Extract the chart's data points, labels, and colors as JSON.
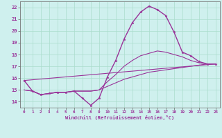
{
  "xlabel": "Windchill (Refroidissement éolien,°C)",
  "background_color": "#cff0ee",
  "line_color": "#993399",
  "grid_color": "#aaddcc",
  "xlim": [
    -0.5,
    23.5
  ],
  "ylim": [
    13.5,
    22.5
  ],
  "xticks": [
    0,
    1,
    2,
    3,
    4,
    5,
    6,
    7,
    8,
    9,
    10,
    11,
    12,
    13,
    14,
    15,
    16,
    17,
    18,
    19,
    20,
    21,
    22,
    23
  ],
  "yticks": [
    14,
    15,
    16,
    17,
    18,
    19,
    20,
    21,
    22
  ],
  "series": [
    {
      "x": [
        0,
        1,
        2,
        3,
        4,
        5,
        6,
        7,
        8,
        9,
        10,
        11,
        12,
        13,
        14,
        15,
        16,
        17,
        18,
        19,
        20,
        21,
        22,
        23
      ],
      "y": [
        15.8,
        14.9,
        14.6,
        14.7,
        14.8,
        14.8,
        14.9,
        14.3,
        13.7,
        14.3,
        16.1,
        17.5,
        19.3,
        20.7,
        21.6,
        22.1,
        21.8,
        21.3,
        19.9,
        18.2,
        17.9,
        17.4,
        17.2,
        17.2
      ],
      "markers": true,
      "linewidth": 1.0
    },
    {
      "x": [
        0,
        1,
        2,
        3,
        4,
        5,
        6,
        7,
        8,
        9,
        10,
        11,
        12,
        13,
        14,
        15,
        16,
        17,
        18,
        19,
        20,
        21,
        22,
        23
      ],
      "y": [
        15.0,
        14.9,
        14.6,
        14.7,
        14.8,
        14.8,
        14.9,
        14.9,
        14.9,
        15.0,
        15.7,
        16.3,
        17.0,
        17.5,
        17.9,
        18.1,
        18.3,
        18.2,
        18.0,
        17.8,
        17.5,
        17.3,
        17.2,
        17.2
      ],
      "markers": false,
      "linewidth": 0.8
    },
    {
      "x": [
        0,
        1,
        2,
        3,
        4,
        5,
        6,
        7,
        8,
        9,
        10,
        11,
        12,
        13,
        14,
        15,
        16,
        17,
        18,
        19,
        20,
        21,
        22,
        23
      ],
      "y": [
        15.0,
        14.9,
        14.6,
        14.7,
        14.8,
        14.8,
        14.9,
        14.9,
        14.9,
        15.0,
        15.3,
        15.6,
        15.9,
        16.1,
        16.3,
        16.5,
        16.6,
        16.7,
        16.8,
        16.9,
        17.0,
        17.1,
        17.2,
        17.2
      ],
      "markers": false,
      "linewidth": 0.8
    },
    {
      "x": [
        0,
        23
      ],
      "y": [
        15.8,
        17.2
      ],
      "markers": false,
      "linewidth": 0.8
    }
  ]
}
